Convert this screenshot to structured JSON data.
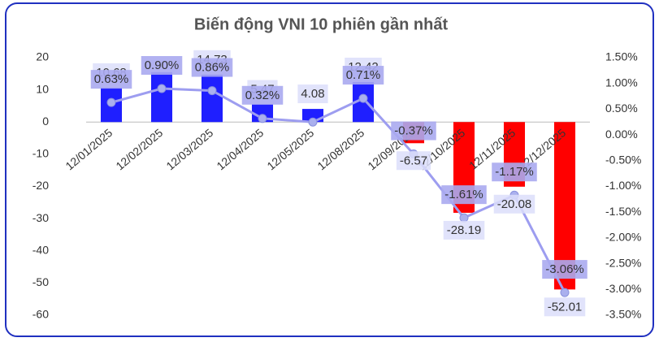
{
  "chart_data": {
    "type": "bar-line",
    "title": "Biến động VNI 10 phiên gần nhất",
    "categories": [
      "12/01/2025",
      "12/02/2025",
      "12/03/2025",
      "12/04/2025",
      "12/05/2025",
      "12/08/2025",
      "12/09/2025",
      "12/10/2025",
      "12/11/2025",
      "12/12/2025"
    ],
    "series": [
      {
        "values": [
          10.68,
          15.5,
          14.73,
          5.47,
          4.08,
          12.42,
          -6.57,
          -28.19,
          -20.08,
          -52.01
        ],
        "value_labels": [
          "10.68",
          null,
          "14.73",
          "5.47",
          "4.08",
          "12.42",
          "-6.57",
          "-28.19",
          "-20.08",
          "-52.01"
        ],
        "colors": [
          "#1f1fff",
          "#1f1fff",
          "#1f1fff",
          "#1f1fff",
          "#1f1fff",
          "#1f1fff",
          "#ff0000",
          "#ff0000",
          "#ff0000",
          "#ff0000"
        ]
      },
      {
        "axis": "y2",
        "color": "#9d9df0",
        "values": [
          0.63,
          0.9,
          0.86,
          0.32,
          0.25,
          0.71,
          -0.37,
          -1.61,
          -1.17,
          -3.06
        ],
        "value_labels": [
          "0.63%",
          "0.90%",
          "0.86%",
          "0.32%",
          null,
          "0.71%",
          "-0.37%",
          "-1.61%",
          "-1.17%",
          "-3.06%"
        ]
      }
    ],
    "ylim": [
      -60,
      20
    ],
    "yticks": [
      -60,
      -50,
      -40,
      -30,
      -20,
      -10,
      0,
      10,
      20
    ],
    "y2lim": [
      -3.5,
      1.5
    ],
    "y2ticks": [
      {
        "value": -3.5,
        "label": "-3.50%"
      },
      {
        "value": -3.0,
        "label": "-3.00%"
      },
      {
        "value": -2.5,
        "label": "-2.50%"
      },
      {
        "value": -2.0,
        "label": "-2.00%"
      },
      {
        "value": -1.5,
        "label": "-1.50%"
      },
      {
        "value": -1.0,
        "label": "-1.00%"
      },
      {
        "value": -0.5,
        "label": "-0.50%"
      },
      {
        "value": 0,
        "label": "0.00%"
      },
      {
        "value": 0.5,
        "label": "0.50%"
      },
      {
        "value": 1.0,
        "label": "1.00%"
      },
      {
        "value": 1.5,
        "label": "1.50%"
      }
    ]
  }
}
